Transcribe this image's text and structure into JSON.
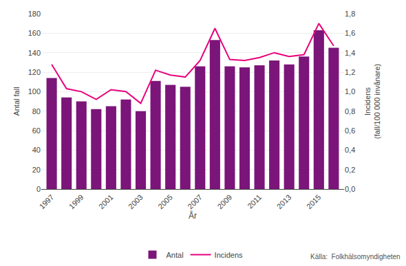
{
  "chart_data": {
    "type": "bar",
    "x": [
      1997,
      1998,
      1999,
      2000,
      2001,
      2002,
      2003,
      2004,
      2005,
      2006,
      2007,
      2008,
      2009,
      2010,
      2011,
      2012,
      2013,
      2014,
      2015,
      2016
    ],
    "series": [
      {
        "name": "Antal",
        "type": "bar",
        "color": "#7B1579",
        "values": [
          114,
          94,
          90,
          82,
          85,
          92,
          80,
          111,
          107,
          105,
          126,
          153,
          126,
          125,
          127,
          132,
          128,
          136,
          163,
          145
        ]
      },
      {
        "name": "Incidens",
        "type": "line",
        "color": "#E8007C",
        "axis": "y2",
        "values": [
          1.28,
          1.03,
          1.0,
          0.92,
          1.02,
          1.0,
          0.88,
          1.22,
          1.17,
          1.15,
          1.32,
          1.65,
          1.33,
          1.32,
          1.35,
          1.4,
          1.36,
          1.38,
          1.7,
          1.47
        ]
      }
    ],
    "xlabel": "År",
    "ylabel": "Antal fall",
    "y2label": "Incidens\n(fall/100 000 invånare)",
    "xlim": [
      1996.3,
      2016.7
    ],
    "xticks": [
      1997,
      1999,
      2001,
      2003,
      2005,
      2007,
      2009,
      2011,
      2013,
      2015
    ],
    "ylim": [
      0,
      180
    ],
    "yticks": [
      0,
      20,
      40,
      60,
      80,
      100,
      120,
      140,
      160,
      180
    ],
    "y2lim": [
      0,
      1.8
    ],
    "y2ticks": [
      {
        "value": 0.0,
        "label": "0,0"
      },
      {
        "value": 0.2,
        "label": "0,2"
      },
      {
        "value": 0.4,
        "label": "0,4"
      },
      {
        "value": 0.6,
        "label": "0,6"
      },
      {
        "value": 0.8,
        "label": "0,8"
      },
      {
        "value": 1.0,
        "label": "1,0"
      },
      {
        "value": 1.2,
        "label": "1,2"
      },
      {
        "value": 1.4,
        "label": "1,4"
      },
      {
        "value": 1.6,
        "label": "1,6"
      },
      {
        "value": 1.8,
        "label": "1,8"
      }
    ],
    "grid": true,
    "legend": "bottom",
    "annotations": [
      "Källa:  Folkhälsomyndigheten"
    ]
  }
}
